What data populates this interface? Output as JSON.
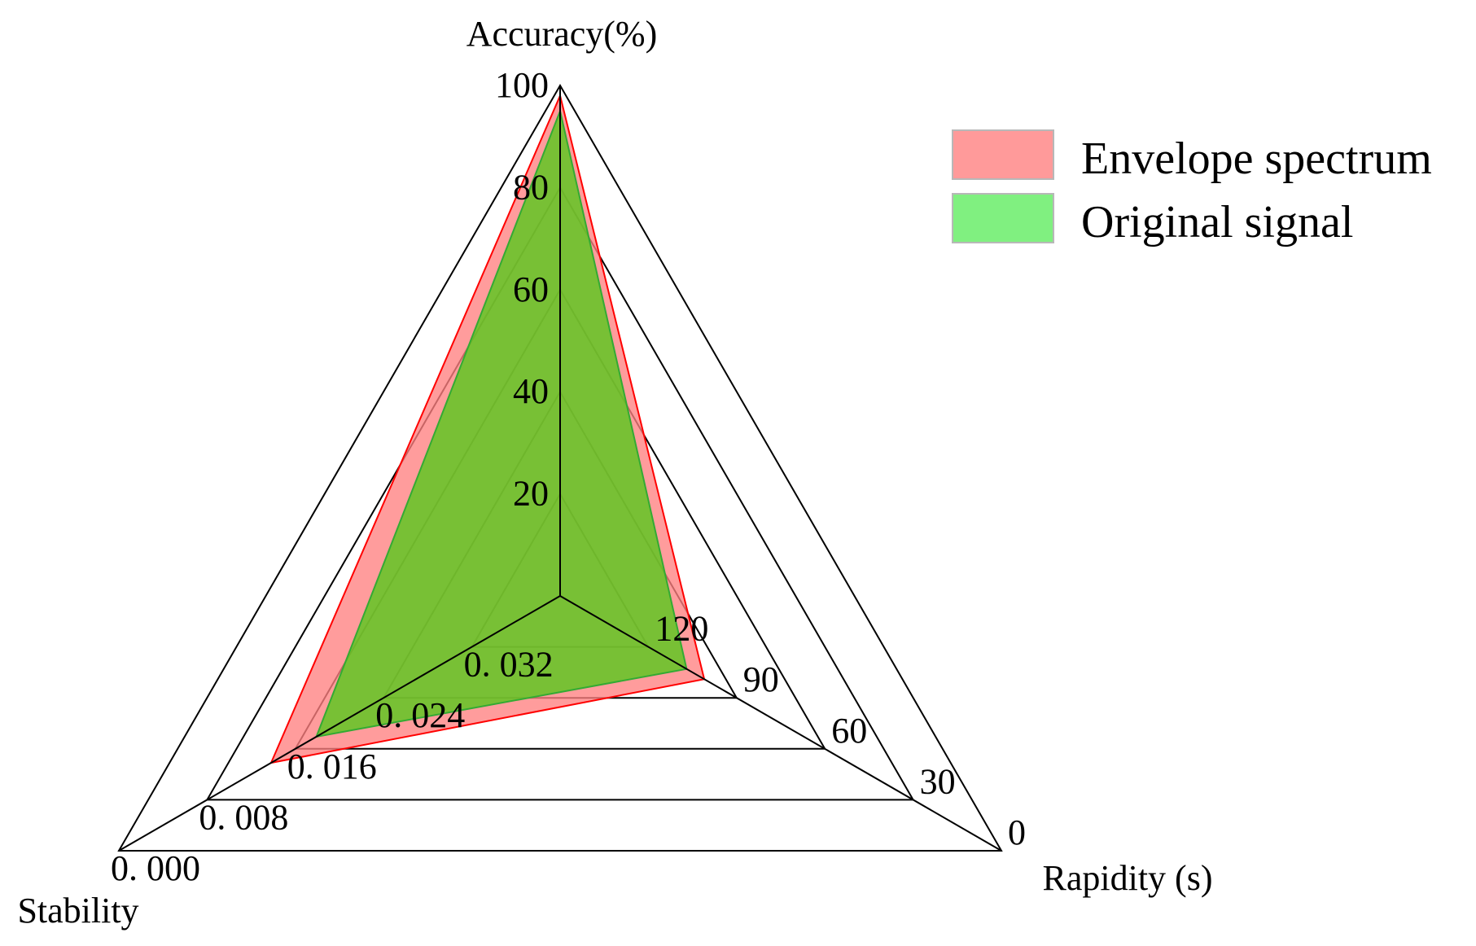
{
  "chart_data": {
    "type": "radar",
    "axes": [
      {
        "key": "accuracy",
        "label": "Accuracy(%)",
        "ticks": [
          "20",
          "40",
          "60",
          "80",
          "100"
        ],
        "range": [
          0,
          100
        ],
        "inverted": false
      },
      {
        "key": "rapidity",
        "label": "Rapidity (s)",
        "ticks": [
          "0",
          "30",
          "60",
          "90",
          "120"
        ],
        "range": [
          150,
          0
        ],
        "inverted": true
      },
      {
        "key": "stability",
        "label": "Stability",
        "ticks": [
          "0. 000",
          "0. 008",
          "0. 016",
          "0. 024",
          "0. 032"
        ],
        "range": [
          0.04,
          0
        ],
        "inverted": true
      }
    ],
    "series": [
      {
        "name": "Envelope spectrum",
        "color": "#ff6b6b",
        "fill": "#ff8080",
        "stroke": "#ff0000",
        "values": {
          "accuracy": 98,
          "rapidity": 101,
          "stability": 0.0138
        }
      },
      {
        "name": "Original signal",
        "color": "#80ff80",
        "fill": "#5ac81e",
        "stroke": "#33aa33",
        "values": {
          "accuracy": 95,
          "rapidity": 107,
          "stability": 0.0179
        }
      }
    ],
    "legend": {
      "placement": "top-right",
      "items": [
        "Envelope spectrum",
        "Original signal"
      ]
    },
    "grid": true
  }
}
